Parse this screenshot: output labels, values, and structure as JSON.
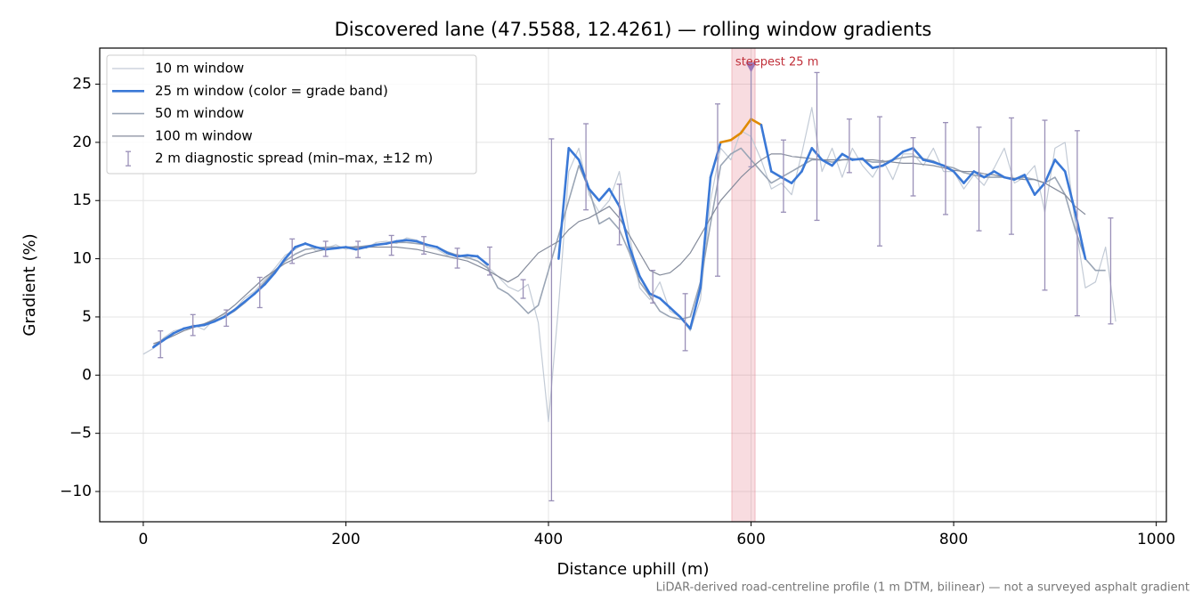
{
  "chart_data": {
    "type": "line",
    "title": "Discovered lane (47.5588, 12.4261) — rolling window gradients",
    "x_label": "Distance uphill (m)",
    "y_label": "Gradient (%)",
    "footnote": "LiDAR-derived road-centreline profile (1 m DTM, bilinear) — not a surveyed asphalt gradient",
    "xlim": [
      -43,
      1010
    ],
    "ylim": [
      -12.6,
      28.1
    ],
    "xticks": [
      0,
      200,
      400,
      600,
      800,
      1000
    ],
    "yticks": [
      {
        "value": -10,
        "label": "−10"
      },
      {
        "value": -5,
        "label": "−5"
      },
      0,
      5,
      10,
      15,
      20,
      25
    ],
    "grid": true,
    "legend": "upper left",
    "x": [
      0,
      10,
      20,
      30,
      40,
      50,
      60,
      70,
      80,
      90,
      100,
      110,
      120,
      130,
      140,
      150,
      160,
      170,
      180,
      190,
      200,
      210,
      220,
      230,
      240,
      250,
      260,
      270,
      280,
      290,
      300,
      310,
      320,
      330,
      340,
      350,
      360,
      370,
      380,
      390,
      400,
      410,
      420,
      430,
      440,
      450,
      460,
      470,
      480,
      490,
      500,
      510,
      520,
      530,
      540,
      550,
      560,
      570,
      580,
      590,
      600,
      610,
      620,
      630,
      640,
      650,
      660,
      670,
      680,
      690,
      700,
      710,
      720,
      730,
      740,
      750,
      760,
      770,
      780,
      790,
      800,
      810,
      820,
      830,
      840,
      850,
      860,
      870,
      880,
      890,
      900,
      910,
      920,
      930,
      940,
      950,
      960
    ],
    "series": [
      {
        "name": "10 m window",
        "color": "#c3cbd6",
        "width": 1.2,
        "values": [
          1.8,
          2.3,
          3.2,
          3.8,
          4.0,
          4.3,
          3.9,
          4.8,
          5.2,
          5.6,
          6.6,
          7.2,
          8.2,
          9.2,
          10.3,
          10.8,
          11.4,
          10.7,
          10.9,
          11.2,
          10.8,
          11.1,
          10.9,
          11.4,
          11.5,
          11.3,
          11.8,
          11.6,
          11.0,
          10.8,
          10.3,
          10.4,
          10.0,
          10.3,
          9.3,
          8.5,
          7.6,
          7.2,
          7.8,
          4.5,
          -4.0,
          6.0,
          17.5,
          19.5,
          15.5,
          14.0,
          15.0,
          17.5,
          12.0,
          7.5,
          6.5,
          8.0,
          5.5,
          5.0,
          3.8,
          6.5,
          15.0,
          19.5,
          18.5,
          21.0,
          20.5,
          18.5,
          16.0,
          16.5,
          15.5,
          19.0,
          23.0,
          17.5,
          19.5,
          17.0,
          19.5,
          18.0,
          17.0,
          18.5,
          16.8,
          19.0,
          19.0,
          18.0,
          19.5,
          17.5,
          17.5,
          16.0,
          17.2,
          16.3,
          17.8,
          19.5,
          16.5,
          17.0,
          18.0,
          14.0,
          19.5,
          20.0,
          13.0,
          7.5,
          8.0,
          11.0,
          4.6
        ]
      },
      {
        "name": "25 m window (color = grade band)",
        "color": "#3a78d6",
        "width": 2.6,
        "grade_bands": [
          {
            "min": 20,
            "color": "#e08a00"
          }
        ],
        "values": [
          null,
          2.4,
          3.0,
          3.6,
          4.0,
          4.2,
          4.3,
          4.6,
          5.0,
          5.6,
          6.3,
          7.0,
          7.8,
          8.8,
          10.0,
          11.0,
          11.3,
          11.0,
          10.8,
          10.9,
          11.0,
          10.8,
          11.0,
          11.2,
          11.3,
          11.5,
          11.6,
          11.5,
          11.2,
          11.0,
          10.5,
          10.2,
          10.3,
          10.2,
          9.5,
          null,
          null,
          null,
          null,
          null,
          null,
          10.0,
          19.5,
          18.5,
          16.0,
          15.0,
          16.0,
          14.5,
          11.0,
          8.5,
          7.0,
          6.6,
          5.8,
          5.0,
          4.0,
          7.5,
          17.0,
          20.0,
          20.2,
          20.8,
          22.0,
          21.5,
          17.5,
          17.0,
          16.5,
          17.5,
          19.5,
          18.5,
          18.0,
          19.0,
          18.5,
          18.6,
          17.8,
          18.0,
          18.5,
          19.2,
          19.5,
          18.5,
          18.3,
          18.0,
          17.5,
          16.5,
          17.5,
          17.0,
          17.5,
          17.0,
          16.8,
          17.2,
          15.5,
          16.5,
          18.5,
          17.5,
          14.0,
          10.0,
          null,
          null,
          null
        ]
      },
      {
        "name": "50 m window",
        "color": "#9aa5b5",
        "width": 1.6,
        "values": [
          null,
          2.5,
          3.1,
          3.6,
          4.0,
          4.2,
          4.4,
          4.7,
          5.0,
          5.5,
          6.2,
          7.0,
          8.0,
          9.0,
          9.8,
          10.4,
          10.8,
          10.9,
          11.0,
          11.0,
          11.0,
          11.0,
          11.1,
          11.2,
          11.3,
          11.4,
          11.4,
          11.3,
          11.2,
          11.0,
          10.6,
          10.3,
          10.1,
          9.8,
          9.2,
          7.5,
          7.0,
          6.2,
          5.3,
          6.0,
          9.0,
          12.0,
          15.0,
          18.0,
          16.0,
          13.0,
          13.5,
          12.5,
          10.5,
          8.0,
          6.8,
          5.5,
          5.0,
          4.8,
          5.0,
          8.0,
          13.0,
          18.0,
          19.0,
          19.5,
          18.5,
          17.5,
          16.5,
          17.0,
          17.5,
          18.0,
          18.5,
          18.5,
          18.3,
          18.5,
          18.6,
          18.5,
          18.3,
          18.3,
          18.5,
          18.7,
          18.8,
          18.6,
          18.4,
          18.0,
          17.8,
          17.4,
          17.2,
          17.0,
          17.0,
          17.0,
          16.9,
          17.0,
          16.8,
          16.5,
          17.0,
          15.5,
          12.5,
          10.0,
          9.0,
          9.0,
          null
        ]
      },
      {
        "name": "100 m window",
        "color": "#858c9c",
        "width": 1.2,
        "values": [
          null,
          2.7,
          3.0,
          3.4,
          3.8,
          4.1,
          4.4,
          4.8,
          5.3,
          6.0,
          6.8,
          7.6,
          8.4,
          9.0,
          9.6,
          10.0,
          10.4,
          10.6,
          10.8,
          10.9,
          11.0,
          11.0,
          11.0,
          11.0,
          11.0,
          11.0,
          10.9,
          10.8,
          10.6,
          10.4,
          10.2,
          10.0,
          9.8,
          9.4,
          9.0,
          8.5,
          8.0,
          8.5,
          9.5,
          10.5,
          11.0,
          11.5,
          12.5,
          13.2,
          13.5,
          14.0,
          14.5,
          13.5,
          12.0,
          10.5,
          9.0,
          8.6,
          8.8,
          9.5,
          10.5,
          12.0,
          13.5,
          15.0,
          16.0,
          17.0,
          17.8,
          18.5,
          19.0,
          19.0,
          18.8,
          18.7,
          18.6,
          18.5,
          18.5,
          18.5,
          18.5,
          18.5,
          18.5,
          18.4,
          18.3,
          18.2,
          18.2,
          18.1,
          18.0,
          17.8,
          17.6,
          17.5,
          17.5,
          17.3,
          17.2,
          17.0,
          16.9,
          16.8,
          16.8,
          16.5,
          16.0,
          15.5,
          14.5,
          13.8,
          null,
          null,
          null
        ]
      }
    ],
    "errorbars": {
      "name": "2 m diagnostic spread (min–max, ±12 m)",
      "color": "#9a90b8",
      "x": [
        17,
        49,
        82,
        115,
        147,
        180,
        212,
        245,
        277,
        310,
        342,
        375,
        403,
        437,
        470,
        503,
        535,
        567,
        600,
        632,
        665,
        697,
        727,
        760,
        792,
        825,
        857,
        890,
        922,
        955
      ],
      "min": [
        1.5,
        3.4,
        4.2,
        5.8,
        9.6,
        10.2,
        10.1,
        10.3,
        10.4,
        9.2,
        8.6,
        6.6,
        -10.8,
        14.2,
        11.2,
        6.2,
        2.1,
        8.5,
        17.9,
        14.0,
        13.3,
        17.4,
        11.1,
        15.4,
        13.8,
        12.4,
        12.1,
        7.3,
        5.1,
        4.4
      ],
      "max": [
        3.8,
        5.2,
        5.6,
        8.4,
        11.7,
        11.5,
        11.5,
        12.0,
        11.9,
        10.9,
        11.0,
        8.2,
        20.3,
        21.6,
        16.4,
        9.0,
        7.0,
        23.3,
        26.5,
        20.2,
        26.0,
        22.0,
        22.2,
        20.4,
        21.7,
        21.3,
        22.1,
        21.9,
        21.0,
        13.5
      ]
    },
    "highlight": {
      "label": "steepest 25 m",
      "x": [
        581,
        604
      ],
      "color": "#e06070",
      "marker_x": 600,
      "marker_y": 26.4,
      "marker_color": "#9a78b8"
    }
  }
}
